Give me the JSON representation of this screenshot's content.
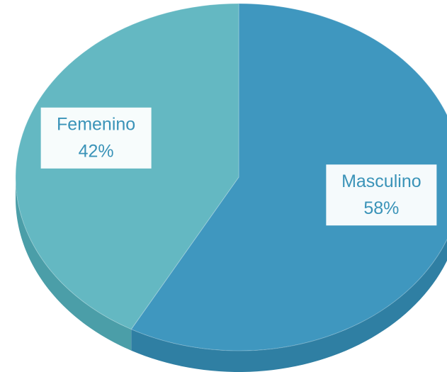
{
  "chart_data": {
    "type": "pie",
    "categories": [
      "Masculino",
      "Femenino"
    ],
    "values": [
      58,
      42
    ],
    "value_labels": [
      "58%",
      "42%"
    ],
    "colors": [
      "#3f97bf",
      "#64b8c2"
    ],
    "side_colors": [
      "#2f7fa3",
      "#4b9ea8"
    ]
  }
}
